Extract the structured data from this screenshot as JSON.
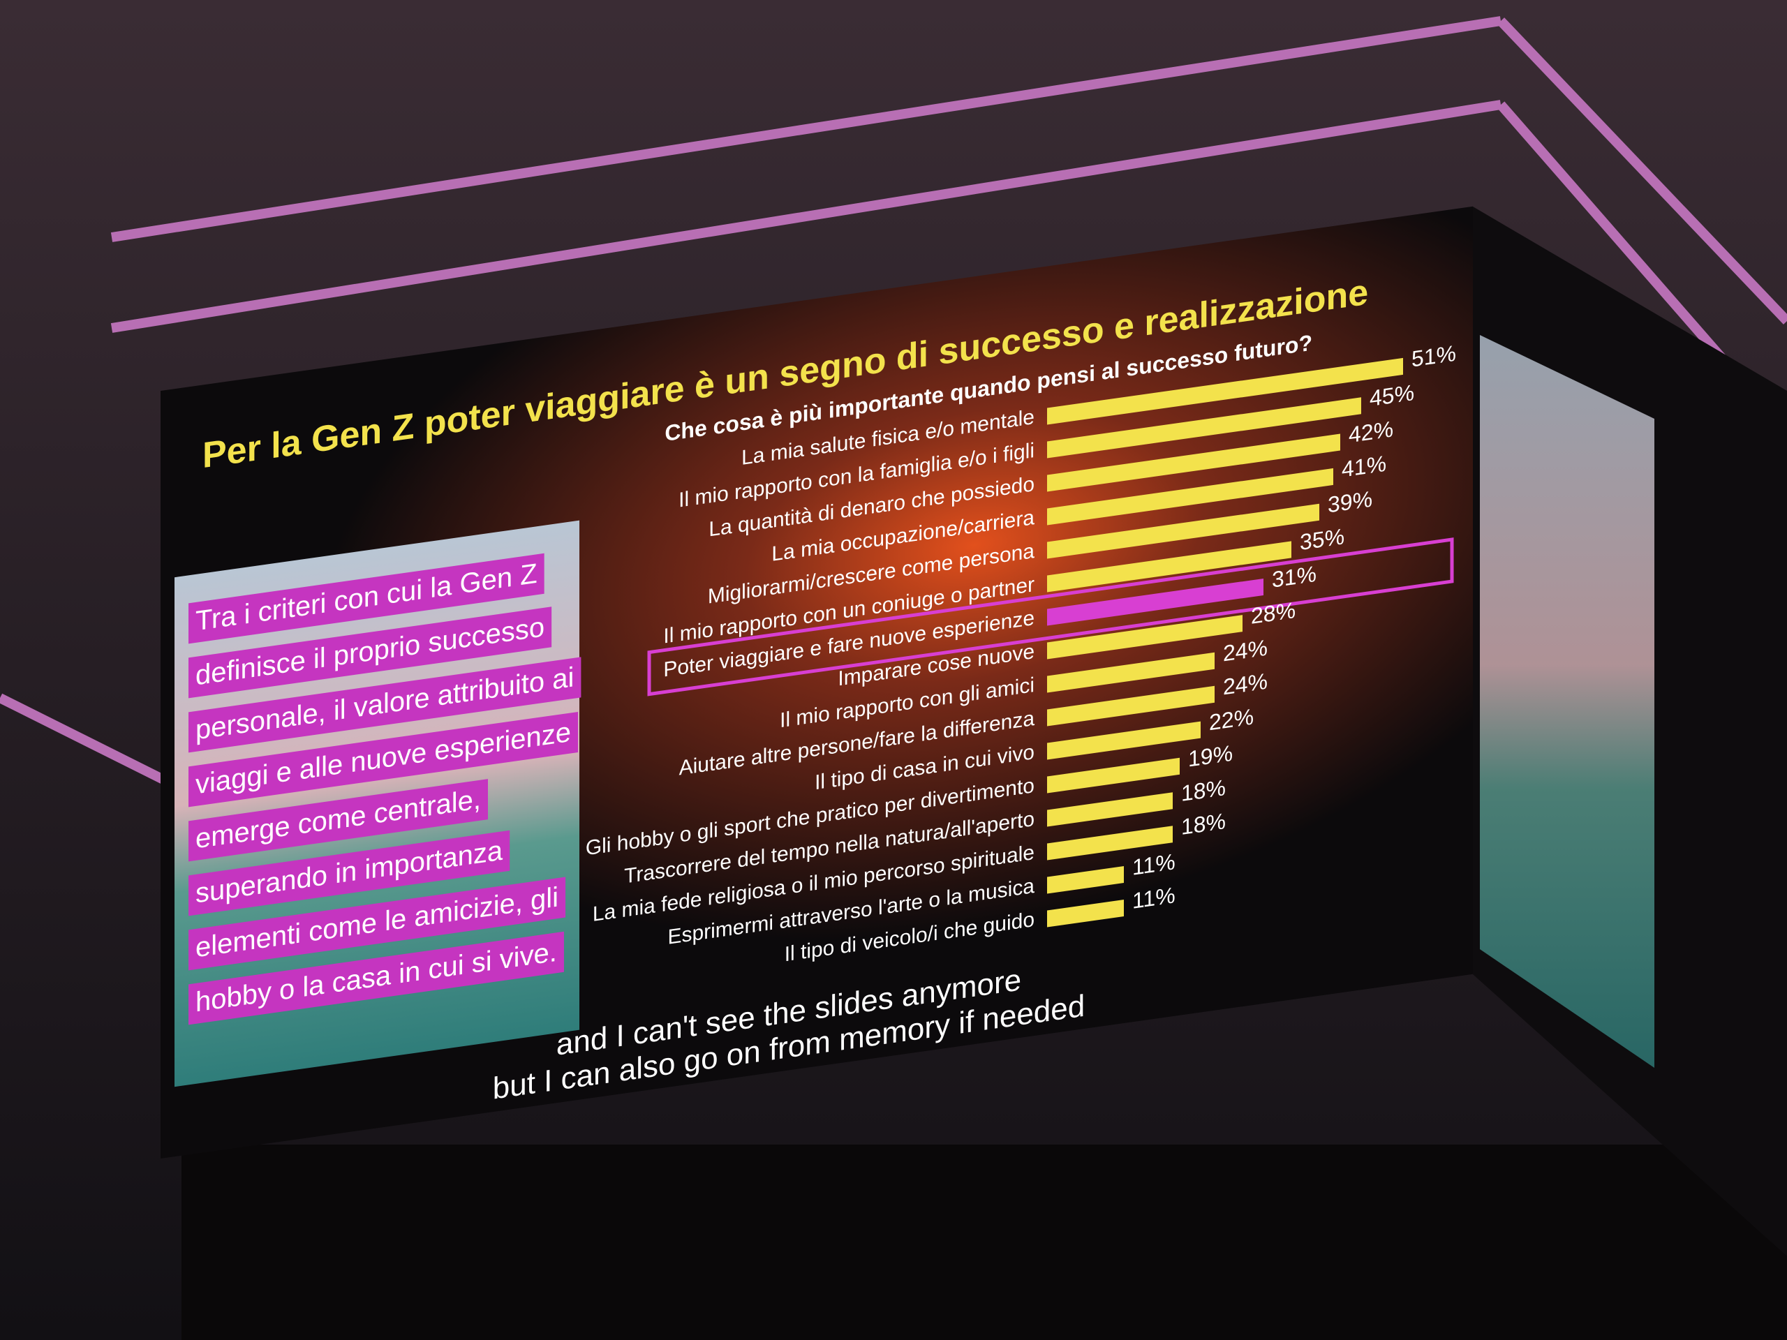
{
  "chart_data": {
    "type": "bar",
    "orientation": "horizontal",
    "title": "Per la Gen Z poter viaggiare è un segno di successo e realizzazione",
    "subtitle": "Che cosa è più importante quando pensi al successo futuro?",
    "categories": [
      "La mia salute fisica e/o mentale",
      "Il mio rapporto con la famiglia e/o i figli",
      "La quantità di denaro che possiedo",
      "La mia occupazione/carriera",
      "Migliorarmi/crescere come persona",
      "Il mio rapporto con un coniuge o partner",
      "Poter viaggiare e fare nuove esperienze",
      "Imparare cose nuove",
      "Il mio rapporto con gli amici",
      "Aiutare altre persone/fare la differenza",
      "Il tipo di casa in cui vivo",
      "Gli hobby o gli sport che pratico per divertimento",
      "Trascorrere del tempo nella natura/all'aperto",
      "La mia fede religiosa o il mio percorso spirituale",
      "Esprimermi attraverso l'arte o la musica",
      "Il tipo di veicolo/i che guido"
    ],
    "values": [
      51,
      45,
      42,
      41,
      39,
      35,
      31,
      28,
      24,
      24,
      22,
      19,
      18,
      18,
      11,
      11
    ],
    "value_labels": [
      "51%",
      "45%",
      "42%",
      "41%",
      "39%",
      "35%",
      "31%",
      "28%",
      "24%",
      "24%",
      "22%",
      "19%",
      "18%",
      "18%",
      "11%",
      "11%"
    ],
    "colors": [
      "#f3e24c",
      "#f3e24c",
      "#f3e24c",
      "#f3e24c",
      "#f3e24c",
      "#f3e24c",
      "#d83fd2",
      "#f3e24c",
      "#f3e24c",
      "#f3e24c",
      "#f3e24c",
      "#f3e24c",
      "#f3e24c",
      "#f3e24c",
      "#f3e24c",
      "#f3e24c"
    ],
    "highlight_color": "#d83fd2"
  },
  "overlay_text": {
    "lines": [
      "Tra i criteri con cui la Gen Z",
      "definisce il proprio successo",
      "personale, il valore attribuito ai",
      "viaggi e alle nuove esperienze",
      "emerge come centrale,",
      "superando in importanza",
      "elementi come le amicizie, gli",
      "hobby o la casa in cui si vive."
    ]
  },
  "captions": [
    "and I can't see the slides anymore",
    "but I can also go on from memory if needed"
  ]
}
